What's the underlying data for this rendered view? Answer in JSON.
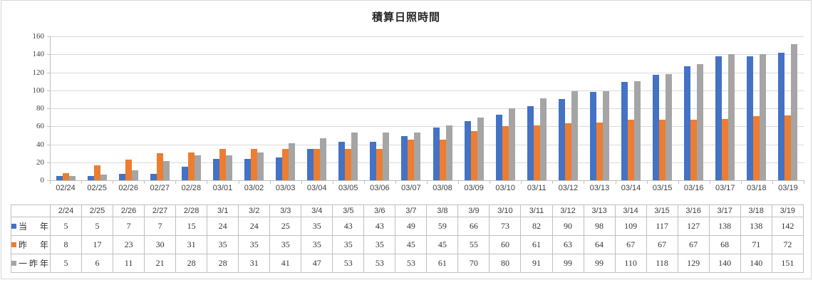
{
  "chart_data": {
    "type": "bar",
    "title": "積算日照時間",
    "xlabel": "",
    "ylabel": "",
    "ylim": [
      0,
      160
    ],
    "ytick_interval": 20,
    "grid": true,
    "legend_position": "data-table-left",
    "categories": [
      "02/24",
      "02/25",
      "02/26",
      "02/27",
      "02/28",
      "03/01",
      "03/02",
      "03/03",
      "03/04",
      "03/05",
      "03/06",
      "03/07",
      "03/08",
      "03/09",
      "03/10",
      "03/11",
      "03/12",
      "03/13",
      "03/14",
      "03/15",
      "03/16",
      "03/17",
      "03/18",
      "03/19"
    ],
    "table_headers": [
      "2/24",
      "2/25",
      "2/26",
      "2/27",
      "2/28",
      "3/1",
      "3/2",
      "3/3",
      "3/4",
      "3/5",
      "3/6",
      "3/7",
      "3/8",
      "3/9",
      "3/10",
      "3/11",
      "3/12",
      "3/13",
      "3/14",
      "3/15",
      "3/16",
      "3/17",
      "3/18",
      "3/19"
    ],
    "series": [
      {
        "name": "当　年",
        "color": "#4472C4",
        "values": [
          5,
          5,
          7,
          7,
          15,
          24,
          24,
          25,
          35,
          43,
          43,
          49,
          59,
          66,
          73,
          82,
          90,
          98,
          109,
          117,
          127,
          138,
          138,
          142
        ]
      },
      {
        "name": "昨　年",
        "color": "#ED7D31",
        "values": [
          8,
          17,
          23,
          30,
          31,
          35,
          35,
          35,
          35,
          35,
          35,
          45,
          45,
          55,
          60,
          61,
          63,
          64,
          67,
          67,
          67,
          68,
          71,
          72
        ]
      },
      {
        "name": "一昨年",
        "color": "#A5A5A5",
        "values": [
          5,
          6,
          11,
          21,
          28,
          28,
          31,
          41,
          47,
          53,
          53,
          53,
          61,
          70,
          80,
          91,
          99,
          99,
          110,
          118,
          129,
          140,
          140,
          151
        ]
      }
    ]
  },
  "colors": {
    "gridline": "#D9D9D9",
    "axis": "#BFBFBF",
    "table_border": "#BFBFBF",
    "text": "#404040"
  }
}
